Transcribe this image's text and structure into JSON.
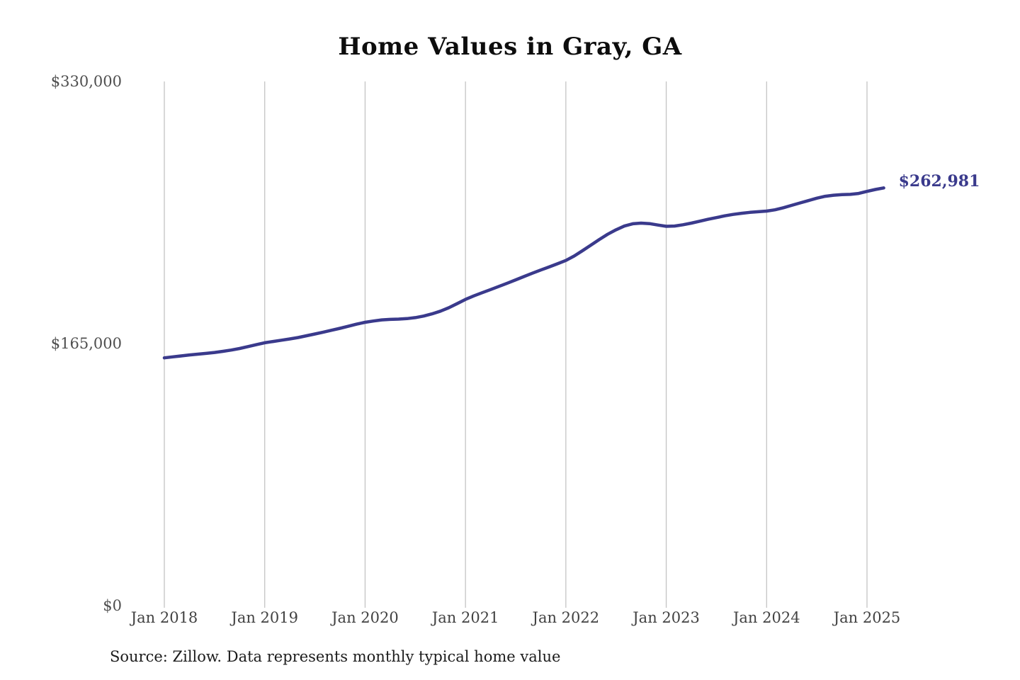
{
  "chart_data": {
    "type": "line",
    "title": "Home Values in Gray, GA",
    "source_note": "Source: Zillow. Data represents monthly typical home value",
    "end_label": "$262,981",
    "x_start": "Jan 2018",
    "x_interval": "month",
    "x_tick_labels": [
      "Jan 2018",
      "Jan 2019",
      "Jan 2020",
      "Jan 2021",
      "Jan 2022",
      "Jan 2023",
      "Jan 2024",
      "Jan 2025"
    ],
    "y_ticks": [
      0,
      165000,
      330000
    ],
    "y_tick_labels": [
      "$0",
      "$165,000",
      "$330,000"
    ],
    "ylim": [
      0,
      330000
    ],
    "grid": "vertical-only",
    "legend": "none",
    "colors": {
      "line": "#3a3a8c",
      "end_label": "#3a3a8c",
      "gridline": "#c4c4c4",
      "axis_text": "#4f4f4f",
      "title_text": "#0d0d0d",
      "source_text": "#1c1c1c"
    },
    "series": [
      {
        "name": "Monthly typical home value",
        "color": "#3a3a8c",
        "values": [
          156000,
          156600,
          157200,
          157800,
          158300,
          158800,
          159400,
          160100,
          160900,
          161900,
          163100,
          164300,
          165500,
          166300,
          167100,
          167900,
          168800,
          169900,
          171000,
          172200,
          173400,
          174600,
          175900,
          177200,
          178400,
          179200,
          179900,
          180200,
          180400,
          180700,
          181300,
          182300,
          183700,
          185400,
          187500,
          190100,
          192800,
          195000,
          197000,
          199000,
          201000,
          203000,
          205100,
          207200,
          209300,
          211300,
          213200,
          215200,
          217300,
          220100,
          223500,
          227000,
          230500,
          233800,
          236600,
          239000,
          240400,
          240800,
          240500,
          239600,
          238800,
          239000,
          239800,
          240800,
          242000,
          243200,
          244300,
          245400,
          246300,
          247000,
          247600,
          248000,
          248400,
          249200,
          250500,
          252000,
          253500,
          255000,
          256500,
          257700,
          258400,
          258800,
          258900,
          259500,
          260800,
          262000,
          262981
        ]
      }
    ]
  }
}
